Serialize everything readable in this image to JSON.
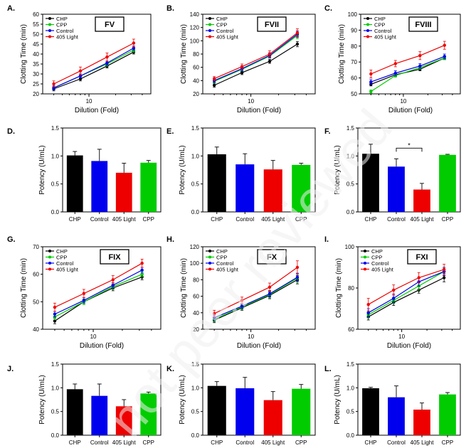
{
  "figure": {
    "watermark": "not peer reviewed"
  },
  "colors": {
    "CHP": "#000000",
    "CPP": "#00cc00",
    "Control": "#0000ee",
    "405 Light": "#ee0000",
    "axis": "#000000"
  },
  "chart_data": [
    {
      "id": "A",
      "panel_label": "A.",
      "title": "FV",
      "type": "line",
      "xlabel": "Dilution (Fold)",
      "ylabel": "Clotting Time (min)",
      "x_scale": "log",
      "xlim": [
        3,
        50
      ],
      "x_ticks": [
        10
      ],
      "ylim": [
        20,
        60
      ],
      "y_ticks": [
        20,
        25,
        30,
        35,
        40,
        45,
        50,
        55,
        60
      ],
      "legend": [
        "CHP",
        "CPP",
        "Control",
        "405 Light"
      ],
      "legend_position": "top-left",
      "x": [
        4,
        8,
        16,
        32
      ],
      "series": [
        {
          "name": "CHP",
          "values": [
            22.5,
            27.5,
            34,
            41
          ],
          "errors": [
            1,
            1,
            1,
            1
          ]
        },
        {
          "name": "CPP",
          "values": [
            23,
            29,
            35,
            42
          ],
          "errors": [
            1,
            1,
            1,
            1
          ]
        },
        {
          "name": "Control",
          "values": [
            23,
            29,
            35.5,
            43
          ],
          "errors": [
            1,
            1,
            1,
            1
          ]
        },
        {
          "name": "405 Light",
          "values": [
            25,
            31.5,
            38.5,
            45.5
          ],
          "errors": [
            1.5,
            2,
            2,
            2
          ]
        }
      ]
    },
    {
      "id": "B",
      "panel_label": "B.",
      "title": "FVII",
      "type": "line",
      "xlabel": "Dilution (Fold)",
      "ylabel": "Clotting Time (min)",
      "x_scale": "log",
      "xlim": [
        3,
        50
      ],
      "x_ticks": [
        10
      ],
      "ylim": [
        20,
        140
      ],
      "y_ticks": [
        20,
        40,
        60,
        80,
        100,
        120,
        140
      ],
      "legend": [
        "CHP",
        "CPP",
        "Control",
        "405 Light"
      ],
      "legend_position": "top-left",
      "x": [
        4,
        8,
        16,
        32
      ],
      "series": [
        {
          "name": "CHP",
          "values": [
            33,
            52,
            69,
            95
          ],
          "errors": [
            3,
            3,
            3,
            4
          ]
        },
        {
          "name": "CPP",
          "values": [
            39,
            57,
            77,
            108
          ],
          "errors": [
            3,
            3,
            3,
            5
          ]
        },
        {
          "name": "Control",
          "values": [
            40,
            58,
            78,
            110
          ],
          "errors": [
            3,
            4,
            4,
            5
          ]
        },
        {
          "name": "405 Light",
          "values": [
            43,
            61,
            80,
            112
          ],
          "errors": [
            3,
            4,
            5,
            6
          ]
        }
      ]
    },
    {
      "id": "C",
      "panel_label": "C.",
      "title": "FVIII",
      "type": "line",
      "xlabel": "Dilution (Fold)",
      "ylabel": "Clotting Time (min)",
      "x_scale": "log",
      "xlim": [
        3,
        50
      ],
      "x_ticks": [
        10
      ],
      "ylim": [
        50,
        100
      ],
      "y_ticks": [
        50,
        60,
        70,
        80,
        90,
        100
      ],
      "legend": [
        "CHP",
        "CPP",
        "Control",
        "405 Light"
      ],
      "legend_position": "top-left",
      "x": [
        4,
        8,
        16,
        32
      ],
      "series": [
        {
          "name": "CHP",
          "values": [
            56,
            62,
            65.5,
            72.5
          ],
          "errors": [
            1,
            1,
            1,
            1
          ]
        },
        {
          "name": "CPP",
          "values": [
            51.5,
            61.5,
            66.5,
            72.5
          ],
          "errors": [
            1,
            1,
            1,
            1
          ]
        },
        {
          "name": "Control",
          "values": [
            57.5,
            63,
            67.5,
            73.5
          ],
          "errors": [
            1.5,
            1.5,
            1.5,
            1.5
          ]
        },
        {
          "name": "405 Light",
          "values": [
            62.5,
            69,
            74,
            80.5
          ],
          "errors": [
            2.5,
            2,
            2.5,
            2.5
          ]
        }
      ]
    },
    {
      "id": "D",
      "panel_label": "D.",
      "type": "bar",
      "ylabel": "Potency (U/mL)",
      "ylim": [
        0,
        1.5
      ],
      "y_ticks": [
        0,
        0.5,
        1.0,
        1.5
      ],
      "categories": [
        "CHP",
        "Control",
        "405 Light",
        "CPP"
      ],
      "values": [
        1.01,
        0.91,
        0.7,
        0.88
      ],
      "errors": [
        0.07,
        0.21,
        0.17,
        0.04
      ]
    },
    {
      "id": "E",
      "panel_label": "E.",
      "type": "bar",
      "ylabel": "Potency (U/mL)",
      "ylim": [
        0,
        1.5
      ],
      "y_ticks": [
        0,
        0.5,
        1.0,
        1.5
      ],
      "categories": [
        "CHP",
        "Control",
        "405 Light",
        "CPP"
      ],
      "values": [
        1.03,
        0.85,
        0.76,
        0.84
      ],
      "errors": [
        0.13,
        0.19,
        0.16,
        0.03
      ]
    },
    {
      "id": "F",
      "panel_label": "F.",
      "type": "bar",
      "ylabel": "Potency (U/mL)",
      "ylim": [
        0,
        1.5
      ],
      "y_ticks": [
        0,
        0.5,
        1.0,
        1.5
      ],
      "categories": [
        "CHP",
        "Control",
        "405 Light",
        "CPP"
      ],
      "values": [
        1.04,
        0.81,
        0.4,
        1.02
      ],
      "errors": [
        0.17,
        0.14,
        0.11,
        0.01
      ],
      "annotation": "*"
    },
    {
      "id": "G",
      "panel_label": "G.",
      "title": "FIX",
      "type": "line",
      "xlabel": "Dilution (Fold)",
      "ylabel": "Clotting Time (min)",
      "x_scale": "log",
      "xlim": [
        3,
        50
      ],
      "x_ticks": [
        10
      ],
      "ylim": [
        40,
        70
      ],
      "y_ticks": [
        40,
        50,
        60,
        70
      ],
      "legend": [
        "CHP",
        "CPP",
        "Control",
        "405 Light"
      ],
      "legend_position": "top-left",
      "x": [
        4,
        8,
        16,
        32
      ],
      "series": [
        {
          "name": "CHP",
          "values": [
            43,
            50,
            55,
            59
          ],
          "errors": [
            1,
            1,
            1,
            1
          ]
        },
        {
          "name": "CPP",
          "values": [
            44.5,
            50,
            55.5,
            60
          ],
          "errors": [
            1,
            1,
            1,
            1
          ]
        },
        {
          "name": "Control",
          "values": [
            45.5,
            50.5,
            56,
            61.5
          ],
          "errors": [
            1,
            1,
            1,
            1
          ]
        },
        {
          "name": "405 Light",
          "values": [
            48,
            53,
            58,
            64
          ],
          "errors": [
            1.5,
            1.5,
            1.5,
            1.5
          ]
        }
      ]
    },
    {
      "id": "H",
      "panel_label": "H.",
      "title": "FX",
      "type": "line",
      "xlabel": "Dilution (Fold)",
      "ylabel": "Clotting Time (min)",
      "x_scale": "log",
      "xlim": [
        3,
        50
      ],
      "x_ticks": [
        10
      ],
      "ylim": [
        20,
        120
      ],
      "y_ticks": [
        20,
        40,
        60,
        80,
        100,
        120
      ],
      "legend": [
        "CHP",
        "CPP",
        "Control",
        "405 Light"
      ],
      "legend_position": "top-left",
      "x": [
        4,
        8,
        16,
        32
      ],
      "series": [
        {
          "name": "CHP",
          "values": [
            31,
            46,
            61,
            80
          ],
          "errors": [
            3,
            3,
            4,
            5
          ]
        },
        {
          "name": "CPP",
          "values": [
            32,
            47,
            62,
            82
          ],
          "errors": [
            3,
            3,
            4,
            5
          ]
        },
        {
          "name": "Control",
          "values": [
            34,
            48,
            63,
            83
          ],
          "errors": [
            3,
            3,
            4,
            5
          ]
        },
        {
          "name": "405 Light",
          "values": [
            39,
            55,
            71,
            95
          ],
          "errors": [
            4,
            4,
            5,
            8
          ]
        }
      ]
    },
    {
      "id": "I",
      "panel_label": "I.",
      "title": "FXI",
      "type": "line",
      "xlabel": "Dilution (Fold)",
      "ylabel": "Clotting Time (min)",
      "x_scale": "log",
      "xlim": [
        3,
        50
      ],
      "x_ticks": [
        10
      ],
      "ylim": [
        60,
        100
      ],
      "y_ticks": [
        60,
        80,
        100
      ],
      "legend": [
        "CHP",
        "CPP",
        "Control",
        "405 Light"
      ],
      "legend_position": "top-left",
      "x": [
        4,
        8,
        16,
        32
      ],
      "series": [
        {
          "name": "CHP",
          "values": [
            66,
            73,
            79,
            85
          ],
          "errors": [
            1.5,
            1.5,
            1.5,
            2
          ]
        },
        {
          "name": "CPP",
          "values": [
            67,
            74,
            81,
            88
          ],
          "errors": [
            1.5,
            1.5,
            2,
            2
          ]
        },
        {
          "name": "Control",
          "values": [
            68,
            75,
            83,
            88
          ],
          "errors": [
            2,
            2,
            2,
            2
          ]
        },
        {
          "name": "405 Light",
          "values": [
            72,
            79,
            85,
            89
          ],
          "errors": [
            3,
            2.5,
            2.5,
            2.5
          ]
        }
      ]
    },
    {
      "id": "J",
      "panel_label": "J.",
      "type": "bar",
      "ylabel": "Potency (U/mL)",
      "ylim": [
        0,
        1.5
      ],
      "y_ticks": [
        0,
        0.5,
        1.0,
        1.5
      ],
      "categories": [
        "CHP",
        "Control",
        "405 Light",
        "CPP"
      ],
      "values": [
        0.97,
        0.83,
        0.61,
        0.88
      ],
      "errors": [
        0.11,
        0.25,
        0.14,
        0.03
      ]
    },
    {
      "id": "K",
      "panel_label": "K.",
      "type": "bar",
      "ylabel": "Potency (U/mL)",
      "ylim": [
        0,
        1.5
      ],
      "y_ticks": [
        0,
        0.5,
        1.0,
        1.5
      ],
      "categories": [
        "CHP",
        "Control",
        "405 Light",
        "CPP"
      ],
      "values": [
        1.04,
        0.99,
        0.74,
        0.98
      ],
      "errors": [
        0.09,
        0.23,
        0.18,
        0.09
      ]
    },
    {
      "id": "L",
      "panel_label": "L.",
      "type": "bar",
      "ylabel": "Potency (U/mL)",
      "ylim": [
        0,
        1.5
      ],
      "y_ticks": [
        0,
        0.5,
        1.0,
        1.5
      ],
      "categories": [
        "CHP",
        "Control",
        "405 Light",
        "CPP"
      ],
      "values": [
        0.99,
        0.8,
        0.54,
        0.86
      ],
      "errors": [
        0.02,
        0.24,
        0.14,
        0.04
      ]
    }
  ]
}
